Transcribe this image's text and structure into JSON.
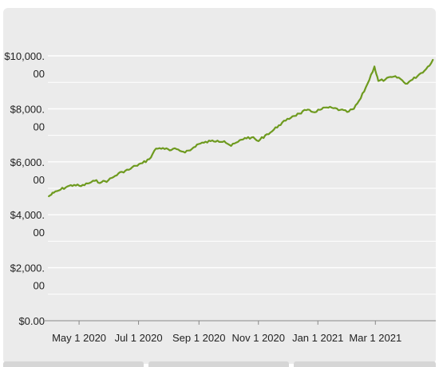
{
  "chart_data": {
    "type": "line",
    "title": "",
    "xlabel": "",
    "ylabel": "",
    "x_ticks": [
      "May 1 2020",
      "Jul 1 2020",
      "Sep 1 2020",
      "Nov 1 2020",
      "Jan 1 2021",
      "Mar 1 2021"
    ],
    "y_ticks": [
      {
        "value": 0,
        "lines": [
          "$0.00"
        ]
      },
      {
        "value": 2000,
        "lines": [
          "$2,000.",
          "00"
        ]
      },
      {
        "value": 4000,
        "lines": [
          "$4,000.",
          "00"
        ]
      },
      {
        "value": 6000,
        "lines": [
          "$6,000.",
          "00"
        ]
      },
      {
        "value": 8000,
        "lines": [
          "$8,000.",
          "00"
        ]
      },
      {
        "value": 10000,
        "lines": [
          "$10,000.",
          "00"
        ]
      }
    ],
    "ylim": [
      0,
      10000
    ],
    "xlim": [
      "2020-03-30",
      "2021-05-02"
    ],
    "grid": true,
    "line_color": "#6e9a1f",
    "series": [
      {
        "points": [
          [
            "2020-03-31",
            4700
          ],
          [
            "2020-04-05",
            4830
          ],
          [
            "2020-04-12",
            4950
          ],
          [
            "2020-04-19",
            5070
          ],
          [
            "2020-04-26",
            5130
          ],
          [
            "2020-05-03",
            5080
          ],
          [
            "2020-05-10",
            5180
          ],
          [
            "2020-05-17",
            5280
          ],
          [
            "2020-05-24",
            5230
          ],
          [
            "2020-05-31",
            5300
          ],
          [
            "2020-06-07",
            5470
          ],
          [
            "2020-06-14",
            5620
          ],
          [
            "2020-06-21",
            5700
          ],
          [
            "2020-06-28",
            5850
          ],
          [
            "2020-07-05",
            5950
          ],
          [
            "2020-07-12",
            6100
          ],
          [
            "2020-07-19",
            6500
          ],
          [
            "2020-07-26",
            6520
          ],
          [
            "2020-08-02",
            6430
          ],
          [
            "2020-08-09",
            6480
          ],
          [
            "2020-08-16",
            6380
          ],
          [
            "2020-08-23",
            6430
          ],
          [
            "2020-08-30",
            6650
          ],
          [
            "2020-09-06",
            6720
          ],
          [
            "2020-09-13",
            6780
          ],
          [
            "2020-09-20",
            6800
          ],
          [
            "2020-09-27",
            6780
          ],
          [
            "2020-10-04",
            6600
          ],
          [
            "2020-10-11",
            6750
          ],
          [
            "2020-10-18",
            6900
          ],
          [
            "2020-10-25",
            6920
          ],
          [
            "2020-11-01",
            6780
          ],
          [
            "2020-11-08",
            7000
          ],
          [
            "2020-11-15",
            7150
          ],
          [
            "2020-11-22",
            7380
          ],
          [
            "2020-11-29",
            7550
          ],
          [
            "2020-12-06",
            7720
          ],
          [
            "2020-12-13",
            7820
          ],
          [
            "2020-12-20",
            7950
          ],
          [
            "2020-12-27",
            7880
          ],
          [
            "2021-01-03",
            7960
          ],
          [
            "2021-01-10",
            8050
          ],
          [
            "2021-01-17",
            8020
          ],
          [
            "2021-01-24",
            7960
          ],
          [
            "2021-01-31",
            7880
          ],
          [
            "2021-02-07",
            8000
          ],
          [
            "2021-02-14",
            8400
          ],
          [
            "2021-02-21",
            8950
          ],
          [
            "2021-02-28",
            9600
          ],
          [
            "2021-03-04",
            9050
          ],
          [
            "2021-03-11",
            9100
          ],
          [
            "2021-03-18",
            9200
          ],
          [
            "2021-03-25",
            9180
          ],
          [
            "2021-04-01",
            8950
          ],
          [
            "2021-04-08",
            9100
          ],
          [
            "2021-04-15",
            9300
          ],
          [
            "2021-04-22",
            9500
          ],
          [
            "2021-04-29",
            9850
          ]
        ]
      }
    ]
  }
}
